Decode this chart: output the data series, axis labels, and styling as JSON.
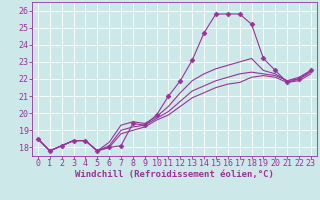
{
  "xlabel": "Windchill (Refroidissement éolien,°C)",
  "background_color": "#cce8e8",
  "line_color": "#993399",
  "grid_color": "#aadddd",
  "text_color": "#993399",
  "xlim": [
    -0.5,
    23.5
  ],
  "ylim": [
    17.5,
    26.5
  ],
  "xticks": [
    0,
    1,
    2,
    3,
    4,
    5,
    6,
    7,
    8,
    9,
    10,
    11,
    12,
    13,
    14,
    15,
    16,
    17,
    18,
    19,
    20,
    21,
    22,
    23
  ],
  "yticks": [
    18,
    19,
    20,
    21,
    22,
    23,
    24,
    25,
    26
  ],
  "lines": [
    {
      "x": [
        0,
        1,
        2,
        3,
        4,
        5,
        6,
        7,
        8,
        9,
        10,
        11,
        12,
        13,
        14,
        15,
        16,
        17,
        18,
        19,
        20,
        21,
        22,
        23
      ],
      "y": [
        18.5,
        17.8,
        18.1,
        18.4,
        18.4,
        17.8,
        18.0,
        18.1,
        19.4,
        19.3,
        19.9,
        21.0,
        21.9,
        23.1,
        24.7,
        25.8,
        25.8,
        25.8,
        25.2,
        23.2,
        22.5,
        21.8,
        22.0,
        22.5
      ],
      "marker": "D",
      "markersize": 2.5
    },
    {
      "x": [
        0,
        1,
        2,
        3,
        4,
        5,
        6,
        7,
        8,
        9,
        10,
        11,
        12,
        13,
        14,
        15,
        16,
        17,
        18,
        19,
        20,
        21,
        22,
        23
      ],
      "y": [
        18.5,
        17.8,
        18.1,
        18.4,
        18.4,
        17.8,
        18.3,
        19.3,
        19.5,
        19.4,
        19.8,
        20.4,
        21.2,
        21.9,
        22.3,
        22.6,
        22.8,
        23.0,
        23.2,
        22.5,
        22.3,
        21.9,
        22.1,
        22.5
      ],
      "marker": null,
      "markersize": 0
    },
    {
      "x": [
        0,
        1,
        2,
        3,
        4,
        5,
        6,
        7,
        8,
        9,
        10,
        11,
        12,
        13,
        14,
        15,
        16,
        17,
        18,
        19,
        20,
        21,
        22,
        23
      ],
      "y": [
        18.5,
        17.8,
        18.1,
        18.4,
        18.4,
        17.8,
        18.1,
        19.0,
        19.2,
        19.3,
        19.7,
        20.1,
        20.7,
        21.3,
        21.6,
        21.9,
        22.1,
        22.3,
        22.4,
        22.3,
        22.2,
        21.9,
        22.0,
        22.4
      ],
      "marker": null,
      "markersize": 0
    },
    {
      "x": [
        0,
        1,
        2,
        3,
        4,
        5,
        6,
        7,
        8,
        9,
        10,
        11,
        12,
        13,
        14,
        15,
        16,
        17,
        18,
        19,
        20,
        21,
        22,
        23
      ],
      "y": [
        18.5,
        17.8,
        18.1,
        18.4,
        18.4,
        17.8,
        18.0,
        18.8,
        19.0,
        19.2,
        19.6,
        19.9,
        20.4,
        20.9,
        21.2,
        21.5,
        21.7,
        21.8,
        22.1,
        22.2,
        22.1,
        21.8,
        21.9,
        22.3
      ],
      "marker": null,
      "markersize": 0
    }
  ],
  "xlabel_fontsize": 6.5,
  "tick_fontsize": 6.0
}
